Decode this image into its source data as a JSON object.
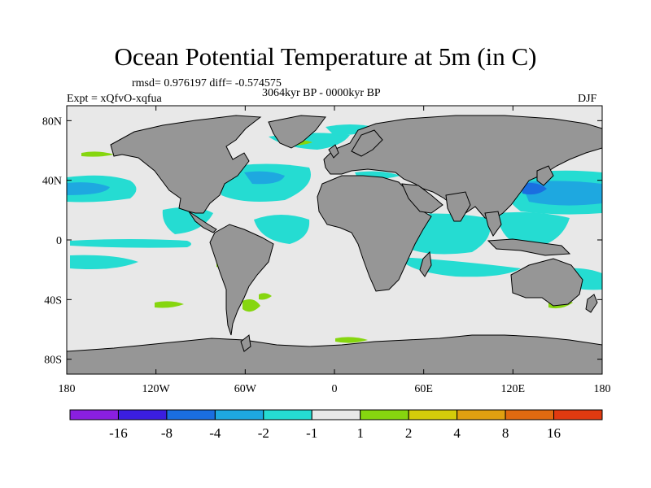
{
  "title": "Ocean Potential Temperature at 5m (in C)",
  "stats": "rmsd= 0.976197 diff= -0.574575",
  "period": "3064kyr BP - 0000kyr BP",
  "experiment": "Expt = xQfvO-xqfua",
  "season": "DJF",
  "axes": {
    "lat_ticks": [
      {
        "label": "80N",
        "lat": 80
      },
      {
        "label": "40N",
        "lat": 40
      },
      {
        "label": "0",
        "lat": 0
      },
      {
        "label": "40S",
        "lat": -40
      },
      {
        "label": "80S",
        "lat": -80
      }
    ],
    "lon_ticks": [
      {
        "label": "180",
        "lon": -180
      },
      {
        "label": "120W",
        "lon": -120
      },
      {
        "label": "60W",
        "lon": -60
      },
      {
        "label": "0",
        "lon": 0
      },
      {
        "label": "60E",
        "lon": 60
      },
      {
        "label": "120E",
        "lon": 120
      },
      {
        "label": "180",
        "lon": 180
      }
    ]
  },
  "colorbar": {
    "colors": [
      "#8a1fe0",
      "#3b1ee0",
      "#1a6ee0",
      "#1ea8e0",
      "#25dcd2",
      "#e8e8e8",
      "#86d60f",
      "#d4cc0a",
      "#e0a010",
      "#e06a10",
      "#e03a10"
    ],
    "labels": [
      "-16",
      "-8",
      "-4",
      "-2",
      "-1",
      "1",
      "2",
      "4",
      "8",
      "16"
    ]
  },
  "colors": {
    "land": "#969696",
    "ocean_neutral": "#e8e8e8",
    "cool_light": "#25dcd2",
    "cool_mid": "#1ea8e0",
    "cool_strong": "#1a6ee0",
    "warm_light": "#86d60f"
  }
}
